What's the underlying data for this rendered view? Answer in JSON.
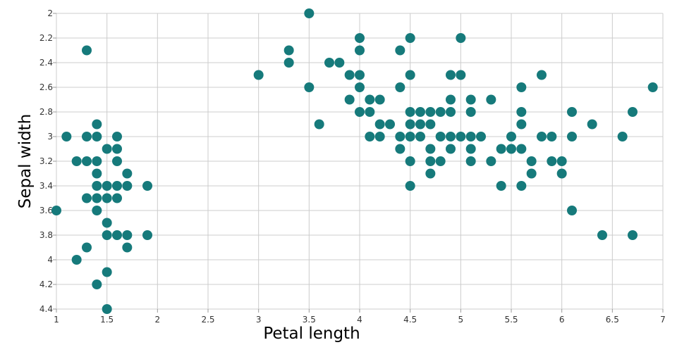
{
  "chart_data": {
    "type": "scatter",
    "xlabel": "Petal length",
    "ylabel": "Sepal width",
    "xlim": [
      1,
      7
    ],
    "ylim": [
      2,
      4.4
    ],
    "y_axis_reversed": true,
    "grid": true,
    "marker_color": "#167a7b",
    "x_ticks": [
      "1",
      "1.5",
      "2",
      "2.5",
      "3",
      "3.5",
      "4",
      "4.5",
      "5",
      "5.5",
      "6",
      "6.5",
      "7"
    ],
    "y_ticks": [
      "2",
      "2.2",
      "2.4",
      "2.6",
      "2.8",
      "3",
      "3.2",
      "3.4",
      "3.6",
      "3.8",
      "4",
      "4.2",
      "4.4"
    ],
    "points": [
      {
        "x": 1.0,
        "y": 3.6
      },
      {
        "x": 1.1,
        "y": 3.0
      },
      {
        "x": 1.2,
        "y": 3.2
      },
      {
        "x": 1.2,
        "y": 4.0
      },
      {
        "x": 1.3,
        "y": 2.3
      },
      {
        "x": 1.3,
        "y": 3.0
      },
      {
        "x": 1.3,
        "y": 3.2
      },
      {
        "x": 1.3,
        "y": 3.5
      },
      {
        "x": 1.3,
        "y": 3.9
      },
      {
        "x": 1.4,
        "y": 2.9
      },
      {
        "x": 1.4,
        "y": 3.0
      },
      {
        "x": 1.4,
        "y": 3.2
      },
      {
        "x": 1.4,
        "y": 3.3
      },
      {
        "x": 1.4,
        "y": 3.4
      },
      {
        "x": 1.4,
        "y": 3.5
      },
      {
        "x": 1.4,
        "y": 3.6
      },
      {
        "x": 1.4,
        "y": 4.2
      },
      {
        "x": 1.5,
        "y": 3.1
      },
      {
        "x": 1.5,
        "y": 3.4
      },
      {
        "x": 1.5,
        "y": 3.5
      },
      {
        "x": 1.5,
        "y": 3.7
      },
      {
        "x": 1.5,
        "y": 3.8
      },
      {
        "x": 1.5,
        "y": 4.1
      },
      {
        "x": 1.5,
        "y": 4.4
      },
      {
        "x": 1.6,
        "y": 3.0
      },
      {
        "x": 1.6,
        "y": 3.1
      },
      {
        "x": 1.6,
        "y": 3.2
      },
      {
        "x": 1.6,
        "y": 3.4
      },
      {
        "x": 1.6,
        "y": 3.5
      },
      {
        "x": 1.6,
        "y": 3.8
      },
      {
        "x": 1.7,
        "y": 3.3
      },
      {
        "x": 1.7,
        "y": 3.4
      },
      {
        "x": 1.7,
        "y": 3.8
      },
      {
        "x": 1.7,
        "y": 3.9
      },
      {
        "x": 1.9,
        "y": 3.4
      },
      {
        "x": 1.9,
        "y": 3.8
      },
      {
        "x": 3.0,
        "y": 2.5
      },
      {
        "x": 3.3,
        "y": 2.3
      },
      {
        "x": 3.3,
        "y": 2.4
      },
      {
        "x": 3.5,
        "y": 2.0
      },
      {
        "x": 3.5,
        "y": 2.6
      },
      {
        "x": 3.6,
        "y": 2.9
      },
      {
        "x": 3.7,
        "y": 2.4
      },
      {
        "x": 3.8,
        "y": 2.4
      },
      {
        "x": 3.9,
        "y": 2.5
      },
      {
        "x": 3.9,
        "y": 2.7
      },
      {
        "x": 4.0,
        "y": 2.2
      },
      {
        "x": 4.0,
        "y": 2.3
      },
      {
        "x": 4.0,
        "y": 2.5
      },
      {
        "x": 4.0,
        "y": 2.6
      },
      {
        "x": 4.0,
        "y": 2.8
      },
      {
        "x": 4.1,
        "y": 2.7
      },
      {
        "x": 4.1,
        "y": 2.8
      },
      {
        "x": 4.1,
        "y": 3.0
      },
      {
        "x": 4.2,
        "y": 2.7
      },
      {
        "x": 4.2,
        "y": 2.9
      },
      {
        "x": 4.2,
        "y": 3.0
      },
      {
        "x": 4.3,
        "y": 2.9
      },
      {
        "x": 4.4,
        "y": 2.3
      },
      {
        "x": 4.4,
        "y": 2.6
      },
      {
        "x": 4.4,
        "y": 3.0
      },
      {
        "x": 4.4,
        "y": 3.1
      },
      {
        "x": 4.5,
        "y": 2.2
      },
      {
        "x": 4.5,
        "y": 2.5
      },
      {
        "x": 4.5,
        "y": 2.8
      },
      {
        "x": 4.5,
        "y": 2.9
      },
      {
        "x": 4.5,
        "y": 3.0
      },
      {
        "x": 4.5,
        "y": 3.2
      },
      {
        "x": 4.5,
        "y": 3.4
      },
      {
        "x": 4.6,
        "y": 2.8
      },
      {
        "x": 4.6,
        "y": 2.9
      },
      {
        "x": 4.6,
        "y": 3.0
      },
      {
        "x": 4.7,
        "y": 2.8
      },
      {
        "x": 4.7,
        "y": 2.9
      },
      {
        "x": 4.7,
        "y": 3.1
      },
      {
        "x": 4.7,
        "y": 3.2
      },
      {
        "x": 4.7,
        "y": 3.3
      },
      {
        "x": 4.8,
        "y": 2.8
      },
      {
        "x": 4.8,
        "y": 3.0
      },
      {
        "x": 4.8,
        "y": 3.2
      },
      {
        "x": 4.9,
        "y": 2.5
      },
      {
        "x": 4.9,
        "y": 2.7
      },
      {
        "x": 4.9,
        "y": 2.8
      },
      {
        "x": 4.9,
        "y": 3.0
      },
      {
        "x": 4.9,
        "y": 3.1
      },
      {
        "x": 5.0,
        "y": 2.2
      },
      {
        "x": 5.0,
        "y": 2.5
      },
      {
        "x": 5.0,
        "y": 3.0
      },
      {
        "x": 5.1,
        "y": 2.7
      },
      {
        "x": 5.1,
        "y": 2.8
      },
      {
        "x": 5.1,
        "y": 3.0
      },
      {
        "x": 5.1,
        "y": 3.1
      },
      {
        "x": 5.1,
        "y": 3.2
      },
      {
        "x": 5.2,
        "y": 3.0
      },
      {
        "x": 5.3,
        "y": 2.7
      },
      {
        "x": 5.3,
        "y": 3.2
      },
      {
        "x": 5.4,
        "y": 3.1
      },
      {
        "x": 5.4,
        "y": 3.4
      },
      {
        "x": 5.5,
        "y": 3.0
      },
      {
        "x": 5.5,
        "y": 3.1
      },
      {
        "x": 5.6,
        "y": 2.6
      },
      {
        "x": 5.6,
        "y": 2.8
      },
      {
        "x": 5.6,
        "y": 2.9
      },
      {
        "x": 5.6,
        "y": 3.1
      },
      {
        "x": 5.6,
        "y": 3.4
      },
      {
        "x": 5.7,
        "y": 3.2
      },
      {
        "x": 5.7,
        "y": 3.3
      },
      {
        "x": 5.8,
        "y": 2.5
      },
      {
        "x": 5.8,
        "y": 3.0
      },
      {
        "x": 5.9,
        "y": 3.0
      },
      {
        "x": 5.9,
        "y": 3.2
      },
      {
        "x": 6.0,
        "y": 3.2
      },
      {
        "x": 6.0,
        "y": 3.3
      },
      {
        "x": 6.1,
        "y": 2.8
      },
      {
        "x": 6.1,
        "y": 3.0
      },
      {
        "x": 6.1,
        "y": 3.6
      },
      {
        "x": 6.3,
        "y": 2.9
      },
      {
        "x": 6.4,
        "y": 3.8
      },
      {
        "x": 6.6,
        "y": 3.0
      },
      {
        "x": 6.7,
        "y": 2.8
      },
      {
        "x": 6.7,
        "y": 3.8
      },
      {
        "x": 6.9,
        "y": 2.6
      }
    ]
  }
}
